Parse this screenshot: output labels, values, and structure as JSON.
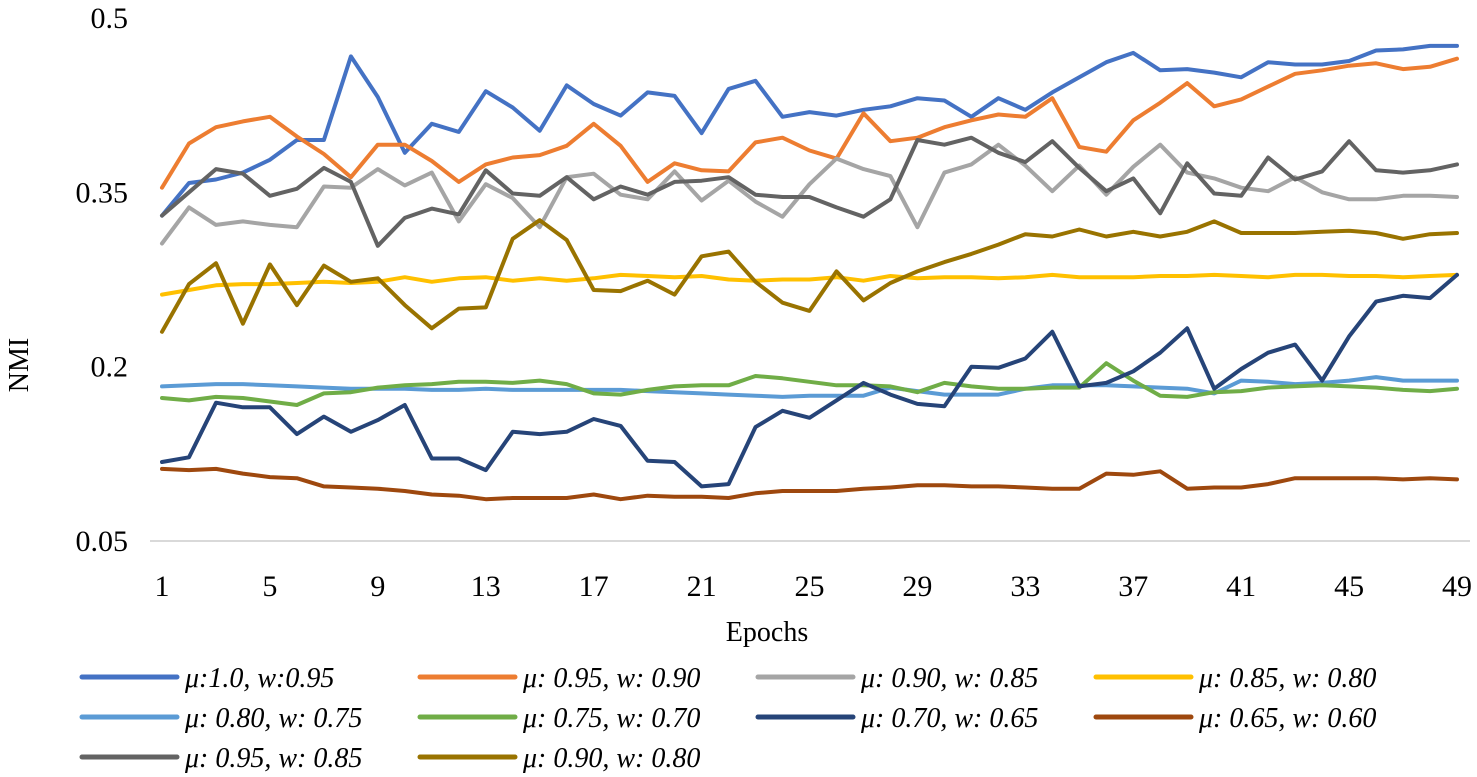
{
  "chart_data": {
    "type": "line",
    "title": "",
    "xlabel": "Epochs",
    "ylabel": "NMI",
    "ylim": [
      0.05,
      0.5
    ],
    "yticks": [
      "0.05",
      "0.2",
      "0.35",
      "0.5"
    ],
    "ytick_values": [
      0.05,
      0.2,
      0.35,
      0.5
    ],
    "xticks": [
      "1",
      "5",
      "9",
      "13",
      "17",
      "21",
      "25",
      "29",
      "33",
      "37",
      "41",
      "45",
      "49"
    ],
    "xtick_values": [
      1,
      5,
      9,
      13,
      17,
      21,
      25,
      29,
      33,
      37,
      41,
      45,
      49
    ],
    "x": [
      1,
      2,
      3,
      4,
      5,
      6,
      7,
      8,
      9,
      10,
      11,
      12,
      13,
      14,
      15,
      16,
      17,
      18,
      19,
      20,
      21,
      22,
      23,
      24,
      25,
      26,
      27,
      28,
      29,
      30,
      31,
      32,
      33,
      34,
      35,
      36,
      37,
      38,
      39,
      40,
      41,
      42,
      43,
      44,
      45,
      46,
      47,
      48,
      49
    ],
    "legend_position": "bottom",
    "series": [
      {
        "name": "μ:1.0, w:0.95",
        "color": "#4472C4",
        "values": [
          0.33,
          0.358,
          0.361,
          0.367,
          0.378,
          0.395,
          0.395,
          0.467,
          0.432,
          0.384,
          0.409,
          0.402,
          0.437,
          0.423,
          0.403,
          0.442,
          0.426,
          0.416,
          0.436,
          0.433,
          0.401,
          0.439,
          0.446,
          0.415,
          0.419,
          0.416,
          0.421,
          0.424,
          0.431,
          0.429,
          0.415,
          0.431,
          0.421,
          0.436,
          0.449,
          0.462,
          0.47,
          0.455,
          0.456,
          0.453,
          0.449,
          0.462,
          0.46,
          0.46,
          0.463,
          0.472,
          0.473,
          0.476,
          0.476
        ]
      },
      {
        "name": "μ: 0.95, w: 0.90",
        "color": "#ED7D31",
        "values": [
          0.354,
          0.392,
          0.406,
          0.411,
          0.415,
          0.398,
          0.383,
          0.363,
          0.391,
          0.391,
          0.377,
          0.359,
          0.374,
          0.38,
          0.382,
          0.39,
          0.409,
          0.39,
          0.359,
          0.375,
          0.369,
          0.368,
          0.393,
          0.397,
          0.386,
          0.379,
          0.418,
          0.394,
          0.397,
          0.406,
          0.412,
          0.417,
          0.415,
          0.431,
          0.389,
          0.385,
          0.412,
          0.427,
          0.444,
          0.424,
          0.43,
          0.441,
          0.452,
          0.455,
          0.459,
          0.461,
          0.456,
          0.458,
          0.465
        ]
      },
      {
        "name": "μ: 0.90, w: 0.85",
        "color": "#A5A5A5",
        "values": [
          0.306,
          0.337,
          0.322,
          0.325,
          0.322,
          0.32,
          0.355,
          0.354,
          0.37,
          0.356,
          0.367,
          0.325,
          0.357,
          0.345,
          0.32,
          0.363,
          0.366,
          0.348,
          0.344,
          0.368,
          0.343,
          0.36,
          0.342,
          0.329,
          0.357,
          0.379,
          0.37,
          0.364,
          0.32,
          0.367,
          0.374,
          0.391,
          0.373,
          0.351,
          0.373,
          0.348,
          0.372,
          0.391,
          0.367,
          0.362,
          0.354,
          0.351,
          0.363,
          0.35,
          0.344,
          0.344,
          0.347,
          0.347,
          0.346
        ]
      },
      {
        "name": "μ: 0.85, w: 0.80",
        "color": "#FFC000",
        "values": [
          0.262,
          0.266,
          0.27,
          0.271,
          0.271,
          0.272,
          0.273,
          0.272,
          0.273,
          0.277,
          0.273,
          0.276,
          0.277,
          0.274,
          0.276,
          0.274,
          0.276,
          0.279,
          0.278,
          0.277,
          0.278,
          0.275,
          0.274,
          0.275,
          0.275,
          0.277,
          0.274,
          0.278,
          0.276,
          0.277,
          0.277,
          0.276,
          0.277,
          0.279,
          0.277,
          0.277,
          0.277,
          0.278,
          0.278,
          0.279,
          0.278,
          0.277,
          0.279,
          0.279,
          0.278,
          0.278,
          0.277,
          0.278,
          0.279
        ]
      },
      {
        "name": "μ: 0.80, w: 0.75",
        "color": "#5B9BD5",
        "values": [
          0.183,
          0.184,
          0.185,
          0.185,
          0.184,
          0.183,
          0.182,
          0.181,
          0.181,
          0.181,
          0.18,
          0.18,
          0.181,
          0.18,
          0.18,
          0.18,
          0.18,
          0.18,
          0.179,
          0.178,
          0.177,
          0.176,
          0.175,
          0.174,
          0.175,
          0.175,
          0.175,
          0.182,
          0.179,
          0.176,
          0.176,
          0.176,
          0.181,
          0.184,
          0.184,
          0.184,
          0.183,
          0.182,
          0.181,
          0.177,
          0.188,
          0.187,
          0.185,
          0.186,
          0.188,
          0.191,
          0.188,
          0.188,
          0.188
        ]
      },
      {
        "name": "μ: 0.75, w: 0.70",
        "color": "#70AD47",
        "values": [
          0.173,
          0.171,
          0.174,
          0.173,
          0.17,
          0.167,
          0.177,
          0.178,
          0.182,
          0.184,
          0.185,
          0.187,
          0.187,
          0.186,
          0.188,
          0.185,
          0.177,
          0.176,
          0.18,
          0.183,
          0.184,
          0.184,
          0.192,
          0.19,
          0.187,
          0.184,
          0.184,
          0.183,
          0.178,
          0.186,
          0.183,
          0.181,
          0.181,
          0.182,
          0.182,
          0.203,
          0.188,
          0.175,
          0.174,
          0.178,
          0.179,
          0.182,
          0.183,
          0.184,
          0.183,
          0.182,
          0.18,
          0.179,
          0.181
        ]
      },
      {
        "name": "μ: 0.70, w: 0.65",
        "color": "#264478",
        "values": [
          0.118,
          0.122,
          0.169,
          0.165,
          0.165,
          0.142,
          0.157,
          0.144,
          0.154,
          0.167,
          0.121,
          0.121,
          0.111,
          0.144,
          0.142,
          0.144,
          0.155,
          0.149,
          0.119,
          0.118,
          0.097,
          0.099,
          0.148,
          0.162,
          0.156,
          0.171,
          0.186,
          0.176,
          0.168,
          0.166,
          0.2,
          0.199,
          0.207,
          0.23,
          0.183,
          0.186,
          0.196,
          0.212,
          0.233,
          0.181,
          0.198,
          0.212,
          0.219,
          0.188,
          0.226,
          0.256,
          0.261,
          0.259,
          0.279
        ]
      },
      {
        "name": "μ: 0.65, w: 0.60",
        "color": "#9E480E",
        "values": [
          0.112,
          0.111,
          0.112,
          0.108,
          0.105,
          0.104,
          0.097,
          0.096,
          0.095,
          0.093,
          0.09,
          0.089,
          0.086,
          0.087,
          0.087,
          0.087,
          0.09,
          0.086,
          0.089,
          0.088,
          0.088,
          0.087,
          0.091,
          0.093,
          0.093,
          0.093,
          0.095,
          0.096,
          0.098,
          0.098,
          0.097,
          0.097,
          0.096,
          0.095,
          0.095,
          0.108,
          0.107,
          0.11,
          0.095,
          0.096,
          0.096,
          0.099,
          0.104,
          0.104,
          0.104,
          0.104,
          0.103,
          0.104,
          0.103
        ]
      },
      {
        "name": "μ: 0.95, w: 0.85",
        "color": "#636363",
        "values": [
          0.33,
          0.35,
          0.37,
          0.366,
          0.347,
          0.353,
          0.371,
          0.359,
          0.304,
          0.328,
          0.336,
          0.331,
          0.369,
          0.349,
          0.347,
          0.363,
          0.344,
          0.355,
          0.348,
          0.359,
          0.36,
          0.363,
          0.348,
          0.346,
          0.346,
          0.337,
          0.329,
          0.344,
          0.395,
          0.391,
          0.397,
          0.384,
          0.376,
          0.394,
          0.371,
          0.351,
          0.362,
          0.332,
          0.375,
          0.349,
          0.347,
          0.38,
          0.361,
          0.368,
          0.394,
          0.369,
          0.367,
          0.369,
          0.374
        ]
      },
      {
        "name": "μ: 0.90, w: 0.80",
        "color": "#997300",
        "values": [
          0.23,
          0.271,
          0.289,
          0.237,
          0.288,
          0.253,
          0.287,
          0.273,
          0.276,
          0.253,
          0.233,
          0.25,
          0.251,
          0.31,
          0.326,
          0.309,
          0.266,
          0.265,
          0.274,
          0.262,
          0.295,
          0.299,
          0.273,
          0.255,
          0.248,
          0.282,
          0.257,
          0.272,
          0.282,
          0.29,
          0.297,
          0.305,
          0.314,
          0.312,
          0.318,
          0.312,
          0.316,
          0.312,
          0.316,
          0.325,
          0.315,
          0.315,
          0.315,
          0.316,
          0.317,
          0.315,
          0.31,
          0.314,
          0.315
        ]
      }
    ]
  }
}
